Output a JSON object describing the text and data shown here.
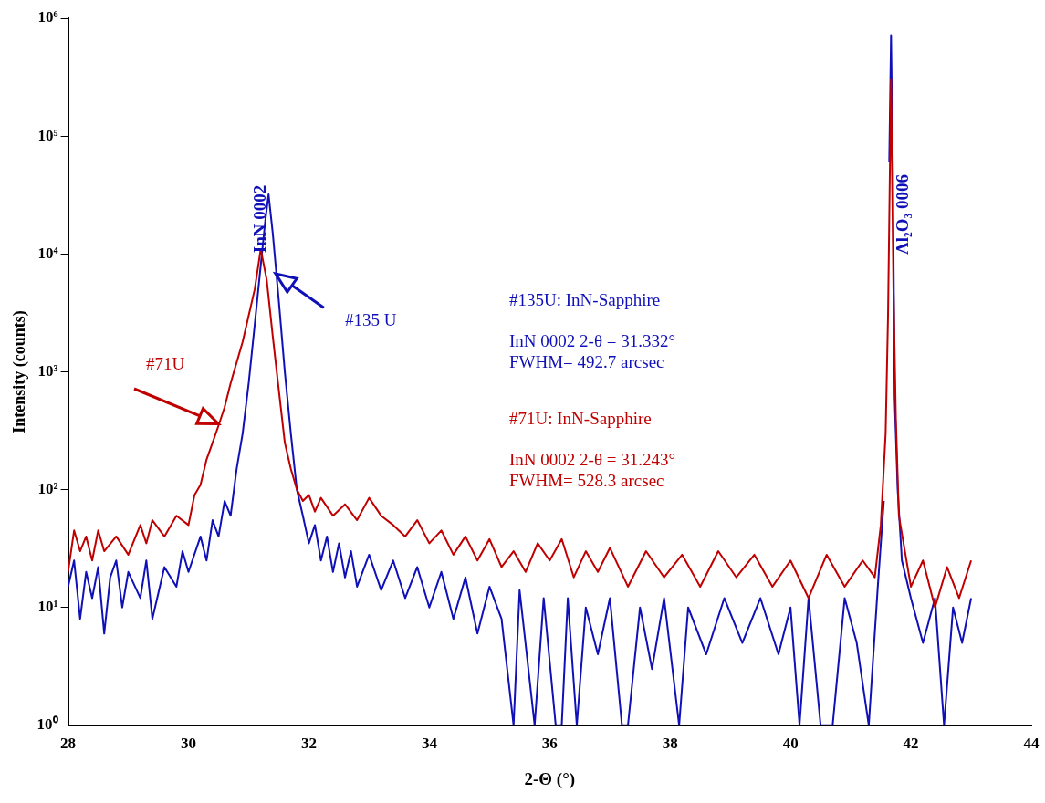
{
  "chart_data": {
    "type": "line",
    "xlabel": "2-Θ (°)",
    "ylabel": "Intensity (counts)",
    "log": "y",
    "grid": false,
    "legend": false,
    "marker": "none",
    "line_style": "solid",
    "xlim": [
      28,
      44
    ],
    "xticks": [
      28,
      30,
      32,
      34,
      36,
      38,
      40,
      42,
      44
    ],
    "ylim": [
      1,
      1000000
    ],
    "yticks": [
      {
        "value": 1,
        "label": "10⁰"
      },
      {
        "value": 10,
        "label": "10¹"
      },
      {
        "value": 100,
        "label": "10²"
      },
      {
        "value": 1000,
        "label": "10³"
      },
      {
        "value": 10000,
        "label": "10⁴"
      },
      {
        "value": 100000,
        "label": "10⁵"
      },
      {
        "value": 1000000,
        "label": "10⁶"
      }
    ],
    "series": [
      {
        "color": "#c00000",
        "x": [
          28.0,
          28.1,
          28.2,
          28.3,
          28.4,
          28.5,
          28.6,
          28.8,
          29.0,
          29.2,
          29.3,
          29.4,
          29.6,
          29.8,
          30.0,
          30.1,
          30.2,
          30.3,
          30.4,
          30.5,
          30.6,
          30.7,
          30.8,
          30.9,
          31.0,
          31.1,
          31.2,
          31.3,
          31.4,
          31.5,
          31.6,
          31.7,
          31.8,
          31.9,
          32.0,
          32.1,
          32.2,
          32.4,
          32.6,
          32.8,
          33.0,
          33.2,
          33.4,
          33.6,
          33.8,
          34.0,
          34.2,
          34.4,
          34.6,
          34.8,
          35.0,
          35.2,
          35.4,
          35.6,
          35.8,
          36.0,
          36.2,
          36.4,
          36.6,
          36.8,
          37.0,
          37.3,
          37.6,
          37.9,
          38.2,
          38.5,
          38.8,
          39.1,
          39.4,
          39.7,
          40.0,
          40.3,
          40.6,
          40.9,
          41.2,
          41.4,
          41.5,
          41.58,
          41.62,
          41.67,
          41.71,
          41.75,
          41.8,
          41.9,
          42.0,
          42.2,
          42.4,
          42.6,
          42.8,
          43.0
        ],
        "values": [
          20,
          45,
          30,
          40,
          25,
          45,
          30,
          40,
          28,
          50,
          35,
          55,
          40,
          60,
          50,
          90,
          110,
          180,
          250,
          350,
          500,
          800,
          1200,
          1800,
          3000,
          5000,
          11000,
          6000,
          2000,
          700,
          250,
          150,
          100,
          80,
          90,
          65,
          85,
          60,
          75,
          55,
          85,
          60,
          50,
          40,
          55,
          35,
          45,
          28,
          40,
          25,
          38,
          22,
          30,
          20,
          35,
          25,
          38,
          18,
          30,
          20,
          32,
          15,
          30,
          18,
          28,
          15,
          30,
          18,
          28,
          15,
          25,
          12,
          28,
          15,
          25,
          18,
          50,
          300,
          3000,
          300000,
          5000,
          400,
          60,
          30,
          15,
          25,
          10,
          22,
          12,
          25
        ]
      },
      {
        "color": "#1010b8",
        "x": [
          28.0,
          28.1,
          28.2,
          28.3,
          28.4,
          28.5,
          28.6,
          28.7,
          28.8,
          28.9,
          29.0,
          29.2,
          29.3,
          29.4,
          29.6,
          29.8,
          29.9,
          30.0,
          30.2,
          30.3,
          30.4,
          30.5,
          30.6,
          30.7,
          30.8,
          30.9,
          31.0,
          31.1,
          31.2,
          31.28,
          31.33,
          31.4,
          31.5,
          31.6,
          31.7,
          31.8,
          31.9,
          32.0,
          32.1,
          32.2,
          32.3,
          32.4,
          32.5,
          32.6,
          32.7,
          32.8,
          33.0,
          33.2,
          33.4,
          33.6,
          33.8,
          34.0,
          34.2,
          34.4,
          34.6,
          34.8,
          35.0,
          35.2,
          35.4,
          35.5,
          35.75,
          35.9,
          36.1,
          36.2,
          36.3,
          36.45,
          36.6,
          36.8,
          37.0,
          37.2,
          37.3,
          37.5,
          37.7,
          37.9,
          38.15,
          38.3,
          38.6,
          38.9,
          39.2,
          39.5,
          39.8,
          40.0,
          40.15,
          40.3,
          40.5,
          40.7,
          40.9,
          41.1,
          41.3,
          41.45,
          41.55,
          41.6,
          41.64,
          41.67,
          41.7,
          41.73,
          41.78,
          41.85,
          42.0,
          42.2,
          42.4,
          42.55,
          42.7,
          42.85,
          43.0
        ],
        "values": [
          15,
          25,
          8,
          20,
          12,
          22,
          6,
          18,
          25,
          10,
          20,
          12,
          25,
          8,
          22,
          15,
          30,
          20,
          40,
          25,
          55,
          40,
          80,
          60,
          150,
          300,
          800,
          2500,
          8000,
          20000,
          32000,
          15000,
          4000,
          1000,
          300,
          100,
          60,
          35,
          50,
          25,
          40,
          20,
          35,
          18,
          30,
          15,
          28,
          14,
          25,
          12,
          22,
          10,
          20,
          8,
          18,
          6,
          15,
          8,
          1,
          14,
          1,
          12,
          1,
          1,
          12,
          1,
          10,
          4,
          12,
          1,
          1,
          10,
          3,
          12,
          1,
          10,
          4,
          12,
          5,
          12,
          4,
          10,
          1,
          12,
          1,
          1,
          12,
          5,
          1,
          15,
          80,
          null,
          60000,
          720000,
          50000,
          600,
          100,
          25,
          12,
          5,
          12,
          1,
          10,
          5,
          12
        ]
      }
    ],
    "annotations": [
      "InN 0002",
      "#135 U",
      "#71U",
      "Al₂O₃ 0006",
      "#135U: InN-Sapphire",
      "InN 0002 2-θ = 31.332°",
      "FWHM= 492.7 arcsec",
      "#71U: InN-Sapphire",
      "InN 0002 2-θ = 31.243°",
      "FWHM= 528.3 arcsec"
    ]
  }
}
